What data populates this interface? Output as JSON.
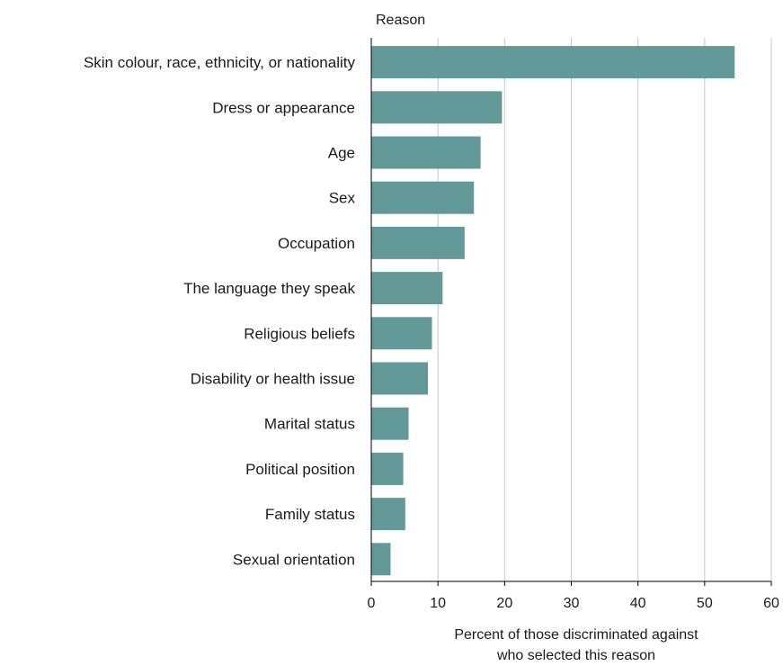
{
  "chart_data": {
    "type": "bar",
    "orientation": "horizontal",
    "categories": [
      "Skin colour, race, ethnicity, or nationality",
      "Dress or appearance",
      "Age",
      "Sex",
      "Occupation",
      "The language they speak",
      "Religious beliefs",
      "Disability or health issue",
      "Marital status",
      "Political position",
      "Family status",
      "Sexual orientation"
    ],
    "values": [
      54.5,
      19.6,
      16.4,
      15.4,
      14.0,
      10.7,
      9.1,
      8.5,
      5.6,
      4.8,
      5.1,
      2.9
    ],
    "title": "",
    "ylabel": "Reason",
    "xlabel_lines": [
      "Percent of those discriminated against",
      "who selected this reason"
    ],
    "xlim": [
      0,
      60
    ],
    "xticks": [
      0,
      10,
      20,
      30,
      40,
      50,
      60
    ],
    "grid": true,
    "bar_color": "#639a99",
    "grid_color": "#c8c8c8"
  }
}
